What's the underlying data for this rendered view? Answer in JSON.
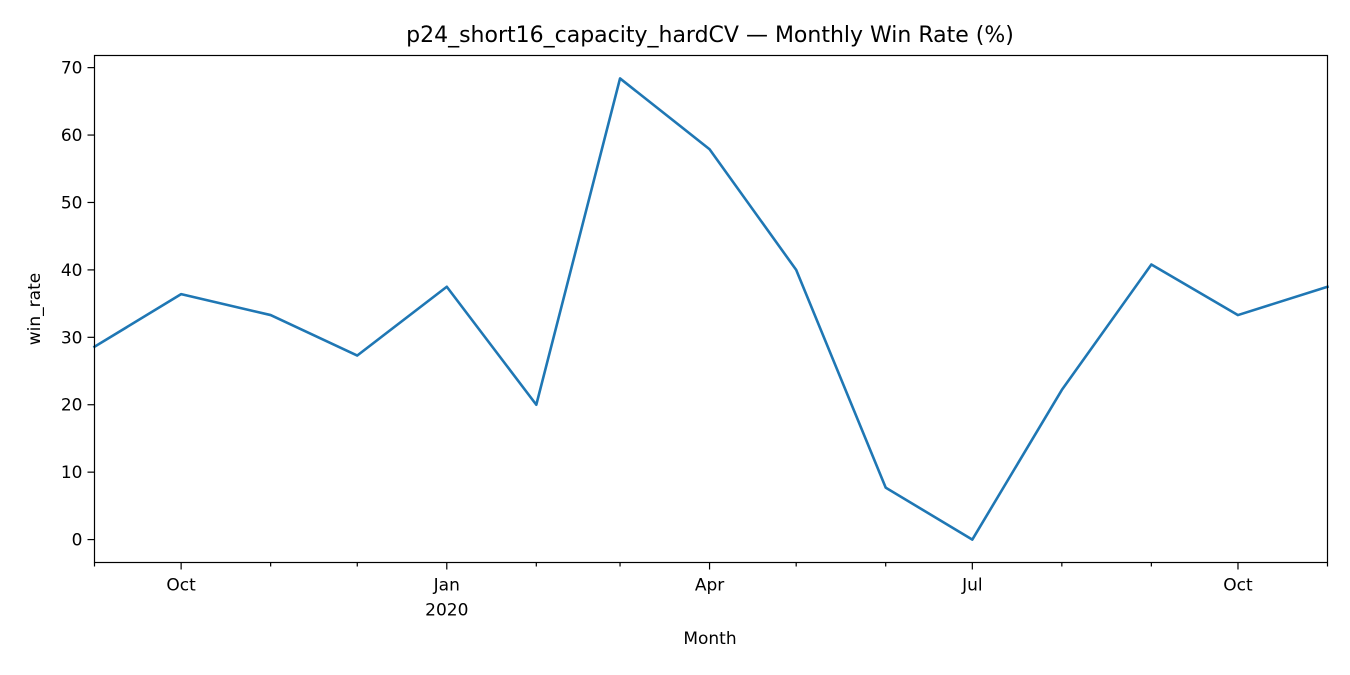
{
  "colors": {
    "series": "#1f77b4"
  },
  "chart_data": {
    "type": "line",
    "title": "p24_short16_capacity_hardCV — Monthly Win Rate (%)",
    "xlabel": "Month",
    "ylabel": "win_rate",
    "x": [
      "2019-09-01",
      "2019-10-01",
      "2019-11-01",
      "2019-12-01",
      "2020-01-01",
      "2020-02-01",
      "2020-03-01",
      "2020-04-01",
      "2020-05-01",
      "2020-06-01",
      "2020-07-01",
      "2020-08-01",
      "2020-09-01",
      "2020-10-01",
      "2020-11-01"
    ],
    "series": [
      {
        "values": [
          28.6,
          36.4,
          33.3,
          27.3,
          37.5,
          20.0,
          68.4,
          57.9,
          40.0,
          7.7,
          0.0,
          22.2,
          40.8,
          33.3,
          37.5
        ]
      }
    ],
    "xlim": [
      "2019-09-01",
      "2020-11-01"
    ],
    "ylim": [
      -3.4,
      71.8
    ],
    "y_ticks": [
      0,
      10,
      20,
      30,
      40,
      50,
      60,
      70
    ],
    "x_major_ticks": [
      {
        "date": "2019-10-01",
        "label": "Oct"
      },
      {
        "date": "2020-01-01",
        "label": "Jan",
        "sublabel": "2020"
      },
      {
        "date": "2020-04-01",
        "label": "Apr"
      },
      {
        "date": "2020-07-01",
        "label": "Jul"
      },
      {
        "date": "2020-10-01",
        "label": "Oct"
      }
    ],
    "x_minor_ticks": [
      "2019-09-01",
      "2019-11-01",
      "2019-12-01",
      "2020-02-01",
      "2020-03-01",
      "2020-05-01",
      "2020-06-01",
      "2020-08-01",
      "2020-09-01",
      "2020-11-01"
    ],
    "grid": false,
    "legend": false
  }
}
